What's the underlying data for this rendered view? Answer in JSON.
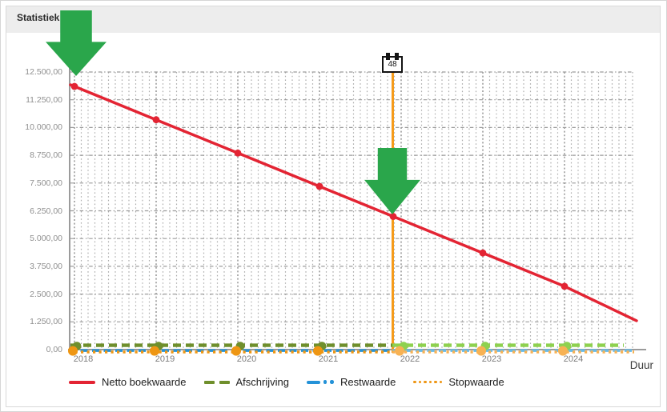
{
  "header": {
    "title": "Statistiek"
  },
  "colors": {
    "red": "#e32433",
    "olive": "#6f8f2c",
    "green_projected": "#8ed14f",
    "blue": "#2492d8",
    "blue_projected": "#66bbea",
    "orange": "#ee9613",
    "orange_projected": "#f7b254",
    "marker_line": "#f59b1b",
    "arrow_green": "#2aa64b",
    "header_bg": "#ededed",
    "grid_minor": "#adadad",
    "grid_major": "#8d8d8d"
  },
  "chart_data": {
    "type": "line",
    "title": "Statistiek",
    "xlabel": "Duur",
    "ylabel": "",
    "ylim": [
      0,
      12500
    ],
    "y_tick_labels": [
      "12.500,00",
      "11.250,00",
      "10.000,00",
      "8.750,00",
      "7.500,00",
      "6.250,00",
      "5.000,00",
      "3.750,00",
      "2.500,00",
      "1.250,00",
      "0,00"
    ],
    "x_tick_labels": [
      "2018",
      "2019",
      "2020",
      "2021",
      "2022",
      "2023",
      "2024"
    ],
    "grid": {
      "vertical": "dotted, monthly",
      "horizontal": "dashed, every 1250"
    },
    "legend_position": "bottom",
    "current_period_marker": {
      "label": "48",
      "x_year_approx": 2021.9
    },
    "series": [
      {
        "name": "Netto boekwaarde",
        "style": "solid",
        "color": "#e32433",
        "x_years": [
          2018,
          2019,
          2020,
          2021,
          2022,
          2023,
          2024
        ],
        "values": [
          11850,
          10350,
          8850,
          7350,
          5850,
          4350,
          2850
        ],
        "value_at_right_edge": 1300
      },
      {
        "name": "Afschrijving",
        "style": "dashed",
        "color": "#6f8f2c",
        "projected_color": "#8ed14f",
        "x_years": [
          2018,
          2019,
          2020,
          2021,
          2022,
          2023,
          2024
        ],
        "values": [
          125,
          125,
          125,
          125,
          125,
          125,
          125
        ]
      },
      {
        "name": "Restwaarde",
        "style": "dash-dot",
        "color": "#2492d8",
        "projected_color": "#66bbea",
        "x_years": [
          2018,
          2019,
          2020,
          2021,
          2022,
          2023,
          2024
        ],
        "values": [
          0,
          0,
          0,
          0,
          0,
          0,
          0
        ]
      },
      {
        "name": "Stopwaarde",
        "style": "dotted",
        "color": "#ee9613",
        "projected_color": "#f7b254",
        "x_years": [
          2018,
          2019,
          2020,
          2021,
          2022,
          2023,
          2024
        ],
        "values": [
          0,
          0,
          0,
          0,
          0,
          0,
          0
        ]
      }
    ],
    "annotations": [
      "green down arrow pointing at start of Netto boekwaarde line",
      "green down arrow pointing at intersection of Netto boekwaarde with period-48 marker line"
    ]
  }
}
